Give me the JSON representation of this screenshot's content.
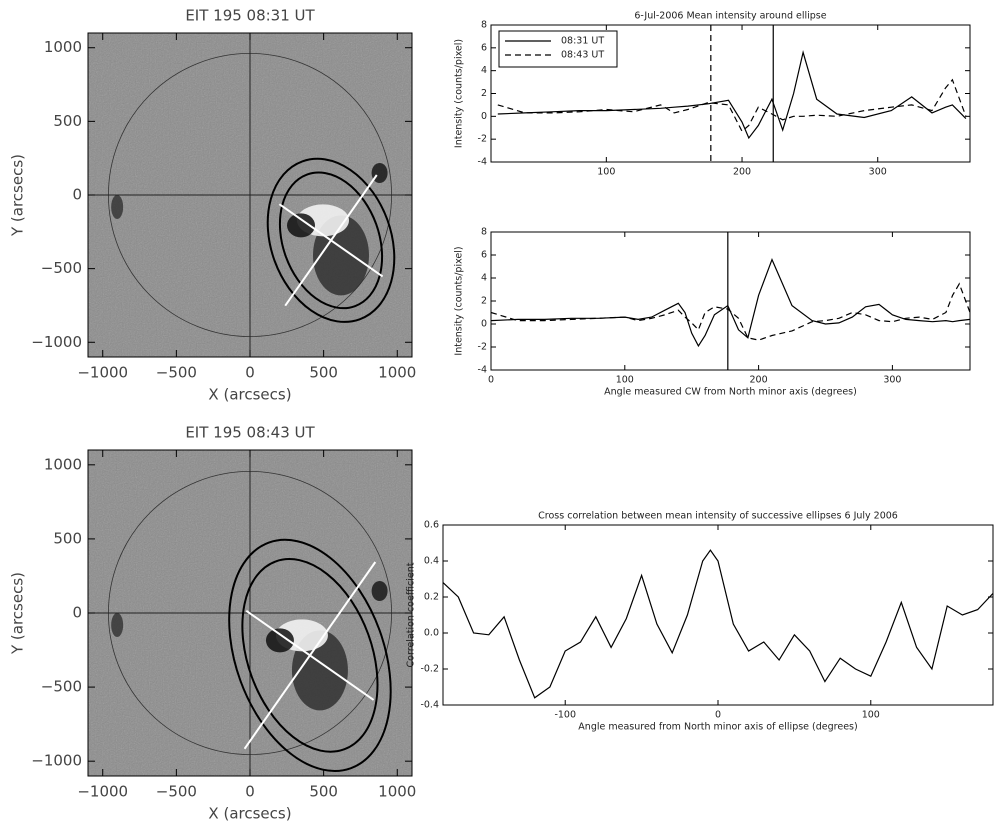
{
  "chart_data": [
    {
      "type": "image",
      "title": "EIT 195 08:31 UT",
      "xlabel": "X (arcsecs)",
      "ylabel": "Y (arcsecs)",
      "xlim": [
        -1100,
        1100
      ],
      "ylim": [
        -1100,
        1100
      ],
      "xticks": [
        {
          "value": -1000,
          "label": "−1000"
        },
        {
          "value": -500,
          "label": "−500"
        },
        0,
        500,
        1000
      ],
      "yticks": [
        {
          "value": -1000,
          "label": "−1000"
        },
        {
          "value": -500,
          "label": "−500"
        },
        0,
        500,
        1000
      ]
    },
    {
      "type": "line",
      "title": "6-Jul-2006  Mean intensity around ellipse",
      "ylabel": "Intensity (counts/pixel)",
      "xlim": [
        15,
        368
      ],
      "ylim": [
        -4,
        8
      ],
      "xticks": [
        100,
        200,
        300
      ],
      "yticks": [
        -4,
        -2,
        0,
        2,
        4,
        6,
        8
      ],
      "x": [
        20,
        40,
        60,
        80,
        100,
        120,
        140,
        150,
        160,
        175,
        190,
        200,
        205,
        212,
        222,
        230,
        238,
        245,
        255,
        270,
        290,
        310,
        325,
        340,
        350,
        355,
        365
      ],
      "series": [
        {
          "name": "08:31 UT",
          "color": "#000000",
          "dash": "solid",
          "values": [
            0.2,
            0.3,
            0.4,
            0.5,
            0.5,
            0.6,
            0.7,
            0.8,
            0.9,
            1.1,
            1.4,
            -0.5,
            -1.9,
            -0.8,
            1.5,
            -1.2,
            2.0,
            5.6,
            1.5,
            0.2,
            -0.1,
            0.5,
            1.7,
            0.3,
            0.8,
            1.0,
            -0.2
          ]
        },
        {
          "name": "08:43 UT",
          "color": "#000000",
          "dash": "dashed",
          "values": [
            1.0,
            0.3,
            0.3,
            0.4,
            0.6,
            0.4,
            1.0,
            0.3,
            0.6,
            1.2,
            1.0,
            -1.3,
            -0.8,
            0.8,
            0.2,
            -0.3,
            0.0,
            0.0,
            0.1,
            0.0,
            0.5,
            0.8,
            1.0,
            0.5,
            2.5,
            3.2,
            0.0
          ]
        }
      ],
      "vlines": [
        {
          "x": 177,
          "dash": "dashed"
        },
        {
          "x": 223,
          "dash": "solid"
        }
      ],
      "legend": "upper left"
    },
    {
      "type": "line",
      "ylabel": "Intensity (counts/pixel)",
      "xlabel": "Angle measured CW from North minor axis (degrees)",
      "xlim": [
        0,
        358
      ],
      "ylim": [
        -4,
        8
      ],
      "xticks": [
        0,
        100,
        200,
        300
      ],
      "yticks": [
        -4,
        -2,
        0,
        2,
        4,
        6,
        8
      ],
      "x": [
        0,
        20,
        40,
        60,
        80,
        100,
        110,
        120,
        130,
        140,
        145,
        150,
        155,
        160,
        167,
        177,
        185,
        192,
        200,
        210,
        225,
        240,
        250,
        260,
        270,
        280,
        290,
        300,
        310,
        320,
        330,
        340,
        345,
        350,
        358
      ],
      "series": [
        {
          "color": "#000000",
          "dash": "solid",
          "values": [
            0.3,
            0.4,
            0.4,
            0.5,
            0.5,
            0.6,
            0.4,
            0.6,
            1.2,
            1.8,
            1.0,
            -0.8,
            -1.9,
            -1.0,
            0.8,
            1.6,
            -0.5,
            -1.2,
            2.5,
            5.6,
            1.6,
            0.3,
            0,
            0.1,
            0.6,
            1.5,
            1.7,
            0.8,
            0.4,
            0.3,
            0.2,
            0.3,
            0.2,
            0.3,
            0.4
          ]
        },
        {
          "color": "#000000",
          "dash": "dashed",
          "values": [
            1.0,
            0.3,
            0.3,
            0.4,
            0.5,
            0.6,
            0.3,
            0.5,
            0.8,
            1.2,
            0.6,
            0.1,
            -0.5,
            1.0,
            1.5,
            1.3,
            0.5,
            -1.2,
            -1.4,
            -1.0,
            -0.6,
            0.2,
            0.3,
            0.5,
            1.0,
            0.8,
            0.3,
            0.2,
            0.5,
            0.6,
            0.4,
            1.0,
            2.5,
            3.5,
            1.0
          ]
        }
      ],
      "vlines": [
        {
          "x": 177,
          "dash": "solid"
        }
      ]
    },
    {
      "type": "image",
      "title": "EIT 195 08:43 UT",
      "xlabel": "X (arcsecs)",
      "ylabel": "Y (arcsecs)",
      "xlim": [
        -1100,
        1100
      ],
      "ylim": [
        -1100,
        1100
      ],
      "xticks": [
        {
          "value": -1000,
          "label": "−1000"
        },
        {
          "value": -500,
          "label": "−500"
        },
        0,
        500,
        1000
      ],
      "yticks": [
        {
          "value": -1000,
          "label": "−1000"
        },
        {
          "value": -500,
          "label": "−500"
        },
        0,
        500,
        1000
      ]
    },
    {
      "type": "line",
      "title": "Cross correlation between mean intensity of successive ellipses 6 July 2006",
      "xlabel": "Angle measured from North minor axis of ellipse (degrees)",
      "ylabel": "Correlation coefficient",
      "xlim": [
        -180,
        180
      ],
      "ylim": [
        -0.4,
        0.6
      ],
      "xticks": [
        -100,
        0,
        100
      ],
      "yticks": [
        -0.4,
        -0.2,
        {
          "value": 0,
          "label": "0.0"
        },
        0.2,
        0.4,
        0.6
      ],
      "x": [
        -180,
        -170,
        -160,
        -150,
        -140,
        -130,
        -120,
        -110,
        -100,
        -90,
        -80,
        -70,
        -60,
        -50,
        -40,
        -30,
        -20,
        -10,
        -5,
        0,
        10,
        20,
        30,
        40,
        50,
        60,
        70,
        80,
        90,
        100,
        110,
        120,
        130,
        140,
        150,
        160,
        170,
        180
      ],
      "series": [
        {
          "color": "#000000",
          "dash": "solid",
          "values": [
            0.28,
            0.2,
            0.0,
            -0.01,
            0.09,
            -0.15,
            -0.36,
            -0.3,
            -0.1,
            -0.05,
            0.09,
            -0.08,
            0.08,
            0.32,
            0.05,
            -0.11,
            0.1,
            0.4,
            0.46,
            0.4,
            0.05,
            -0.1,
            -0.05,
            -0.15,
            -0.01,
            -0.1,
            -0.27,
            -0.14,
            -0.2,
            -0.24,
            -0.05,
            0.17,
            -0.08,
            -0.2,
            0.15,
            0.1,
            0.13,
            0.22
          ]
        }
      ]
    }
  ]
}
